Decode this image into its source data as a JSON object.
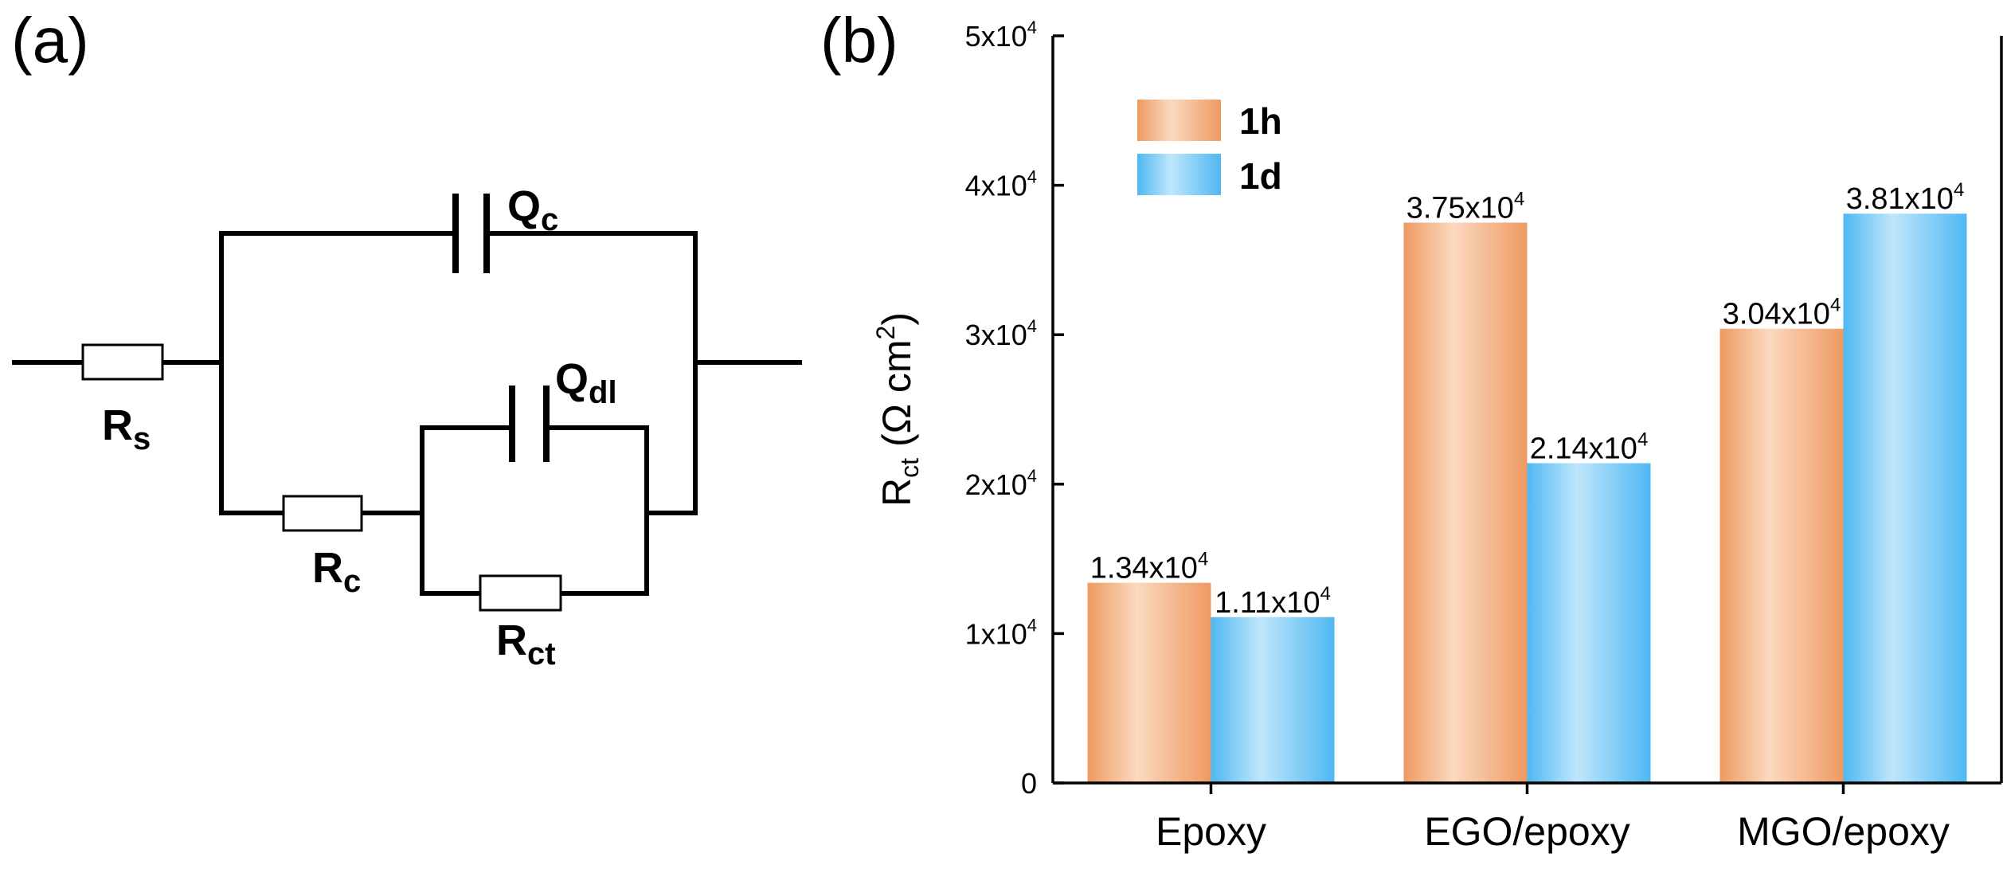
{
  "panel_a": {
    "label": "(a)",
    "components": {
      "rs": {
        "main": "R",
        "sub": "s"
      },
      "qc": {
        "main": "Q",
        "sub": "c"
      },
      "qdl": {
        "main": "Q",
        "sub": "dl"
      },
      "rc": {
        "main": "R",
        "sub": "c"
      },
      "rct": {
        "main": "R",
        "sub": "ct"
      }
    }
  },
  "panel_b": {
    "label": "(b)"
  },
  "chart_data": {
    "type": "bar",
    "title": "",
    "xlabel": "",
    "ylabel": {
      "main": "R",
      "sub": "ct",
      "unit_prefix": "(Ω cm",
      "unit_sup": "2",
      "unit_suffix": ")"
    },
    "ylim": [
      0,
      50000
    ],
    "yticks": [
      {
        "value": 0,
        "base": "0",
        "exp": ""
      },
      {
        "value": 10000,
        "base": "1x10",
        "exp": "4"
      },
      {
        "value": 20000,
        "base": "2x10",
        "exp": "4"
      },
      {
        "value": 30000,
        "base": "3x10",
        "exp": "4"
      },
      {
        "value": 40000,
        "base": "4x10",
        "exp": "4"
      },
      {
        "value": 50000,
        "base": "5x10",
        "exp": "4"
      }
    ],
    "categories": [
      "Epoxy",
      "EGO/epoxy",
      "MGO/epoxy"
    ],
    "series": [
      {
        "name": "1h",
        "color": "#F3A878",
        "values": [
          13400,
          37500,
          30400
        ],
        "labels": [
          {
            "base": "1.34x10",
            "exp": "4"
          },
          {
            "base": "3.75x10",
            "exp": "4"
          },
          {
            "base": "3.04x10",
            "exp": "4"
          }
        ]
      },
      {
        "name": "1d",
        "color": "#6EC6F5",
        "values": [
          11100,
          21400,
          38100
        ],
        "labels": [
          {
            "base": "1.11x10",
            "exp": "4"
          },
          {
            "base": "2.14x10",
            "exp": "4"
          },
          {
            "base": "3.81x10",
            "exp": "4"
          }
        ]
      }
    ],
    "legend": {
      "placement": "top-left",
      "entries": [
        "1h",
        "1d"
      ]
    }
  }
}
